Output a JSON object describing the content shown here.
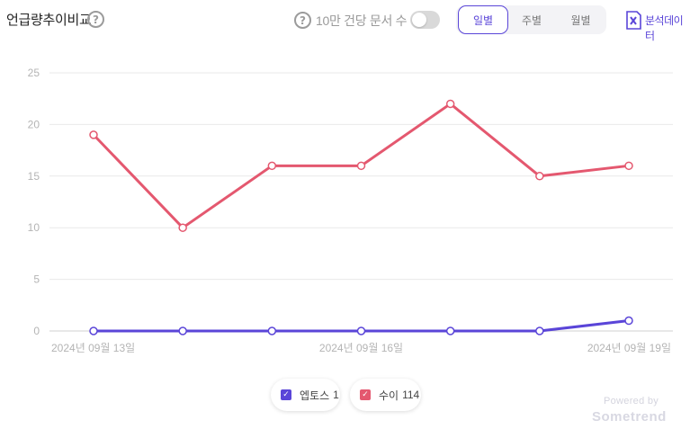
{
  "header": {
    "title": "언급량추이비교",
    "toggle_label": "10만 건당 문서 수",
    "toggle_on": false,
    "period_tabs": [
      {
        "label": "일별",
        "active": true
      },
      {
        "label": "주별",
        "active": false
      },
      {
        "label": "월별",
        "active": false
      }
    ],
    "export_label": "분석데이터",
    "export_icon": "excel-icon",
    "help_icon": "question-circle-icon"
  },
  "chart_data": {
    "type": "line",
    "x": [
      "2024-09-13",
      "2024-09-14",
      "2024-09-15",
      "2024-09-16",
      "2024-09-17",
      "2024-09-18",
      "2024-09-19"
    ],
    "x_tick_labels": [
      {
        "x": "2024-09-13",
        "label": "2024년 09월 13일"
      },
      {
        "x": "2024-09-16",
        "label": "2024년 09월 16일"
      },
      {
        "x": "2024-09-19",
        "label": "2024년 09월 19일"
      }
    ],
    "y_ticks": [
      0,
      5,
      10,
      15,
      20,
      25
    ],
    "ylim": [
      0,
      25
    ],
    "grid": true,
    "legend_position": "bottom-center",
    "series": [
      {
        "name": "엡토스",
        "total": 1,
        "color": "#5a45d8",
        "values": [
          0,
          0,
          0,
          0,
          0,
          0,
          1
        ]
      },
      {
        "name": "수이",
        "total": 114,
        "color": "#e4586f",
        "values": [
          19,
          10,
          16,
          16,
          22,
          15,
          16
        ]
      }
    ]
  },
  "footer": {
    "powered_by": "Powered by",
    "brand": "Sometrend"
  }
}
